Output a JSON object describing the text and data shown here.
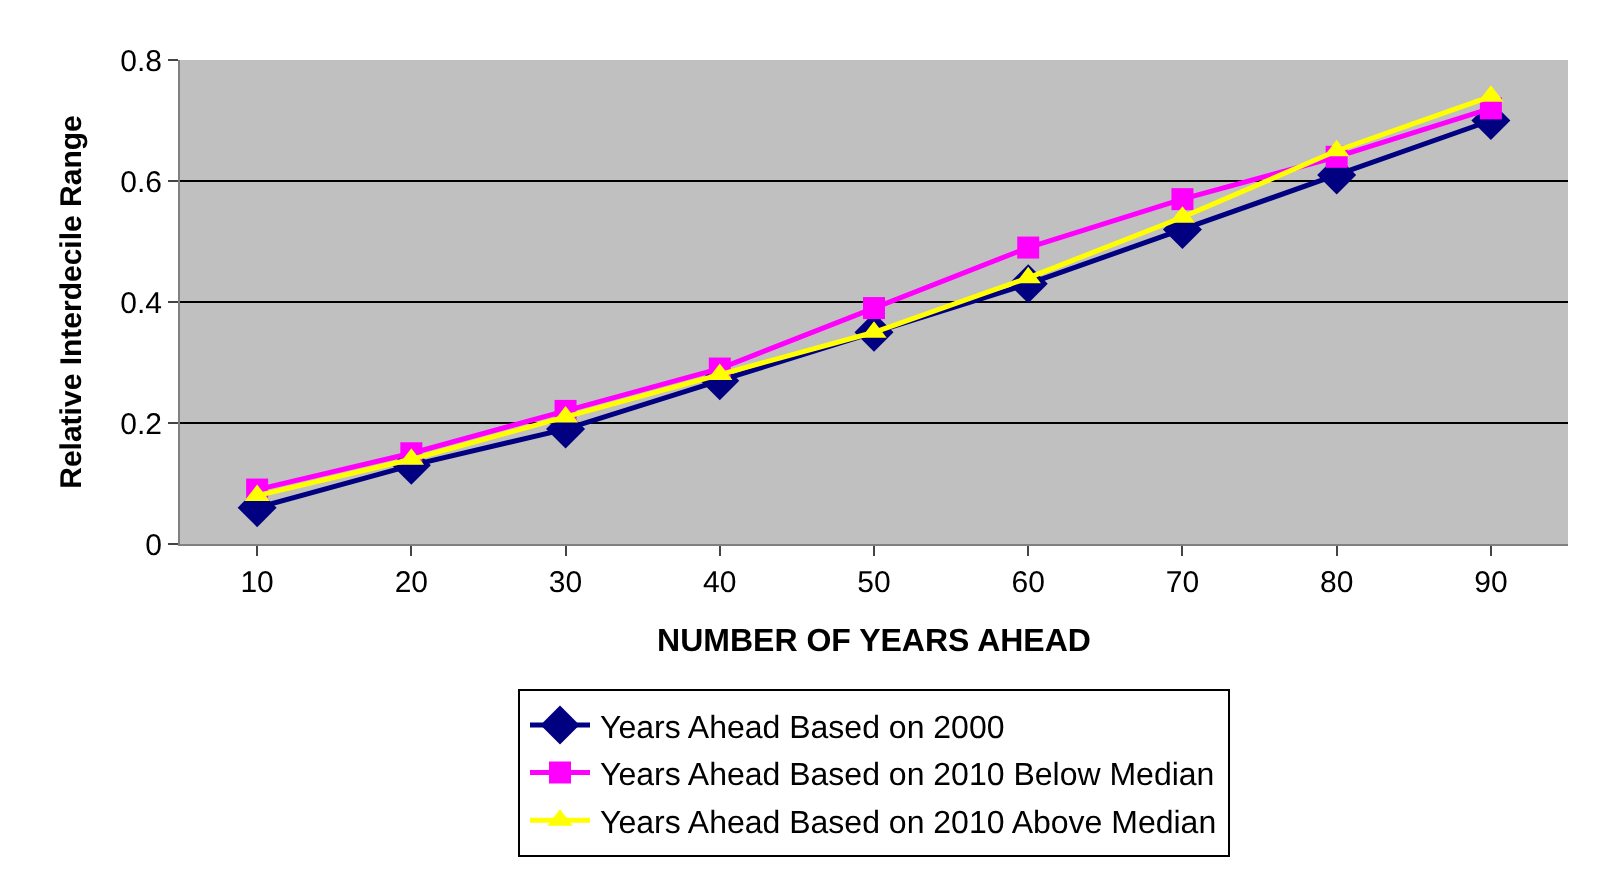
{
  "chart_data": {
    "type": "line",
    "xlabel": "NUMBER OF YEARS AHEAD",
    "ylabel": "Relative Interdecile Range",
    "categories": [
      "10",
      "20",
      "30",
      "40",
      "50",
      "60",
      "70",
      "80",
      "90"
    ],
    "series": [
      {
        "name": "Years Ahead Based on 2000",
        "color": "#000080",
        "marker": "diamond",
        "values": [
          0.06,
          0.13,
          0.19,
          0.27,
          0.35,
          0.43,
          0.52,
          0.61,
          0.7
        ]
      },
      {
        "name": "Years Ahead Based on 2010 Below Median",
        "color": "#ff00ff",
        "marker": "square",
        "values": [
          0.09,
          0.15,
          0.22,
          0.29,
          0.39,
          0.49,
          0.57,
          0.64,
          0.72
        ]
      },
      {
        "name": "Years Ahead Based on 2010 Above Median",
        "color": "#ffff00",
        "marker": "triangle",
        "values": [
          0.08,
          0.14,
          0.21,
          0.28,
          0.35,
          0.44,
          0.54,
          0.65,
          0.74
        ]
      }
    ],
    "ylim": [
      0,
      0.8
    ],
    "yticks": [
      0,
      0.2,
      0.4,
      0.6,
      0.8
    ],
    "grid": "y",
    "legend": "bottom"
  }
}
